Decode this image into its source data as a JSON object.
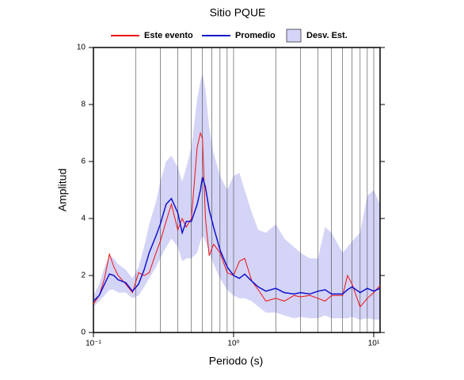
{
  "chart_data": {
    "type": "line",
    "title": "Sitio PQUE",
    "xlabel": "Periodo (s)",
    "ylabel": "Amplitud",
    "xscale": "log",
    "xlim": [
      0.1,
      11.1
    ],
    "ylim": [
      0,
      10
    ],
    "xticks": [
      {
        "value": 0.1,
        "label": "10⁻¹"
      },
      {
        "value": 1,
        "label": "10⁰"
      },
      {
        "value": 10,
        "label": "10¹"
      }
    ],
    "xgrid": [
      0.2,
      0.3,
      0.4,
      0.5,
      0.6,
      0.7,
      0.8,
      0.9,
      2,
      3,
      4,
      5,
      6,
      7,
      8,
      9
    ],
    "yticks": [
      0,
      2,
      4,
      6,
      8,
      10
    ],
    "legend": "top",
    "x": [
      0.1,
      0.11,
      0.12,
      0.13,
      0.14,
      0.15,
      0.17,
      0.19,
      0.21,
      0.23,
      0.25,
      0.28,
      0.3,
      0.33,
      0.36,
      0.4,
      0.43,
      0.46,
      0.5,
      0.55,
      0.58,
      0.6,
      0.63,
      0.67,
      0.72,
      0.8,
      0.9,
      1.0,
      1.1,
      1.2,
      1.35,
      1.5,
      1.7,
      2.0,
      2.3,
      2.7,
      3.0,
      3.5,
      4,
      4.5,
      5,
      6,
      6.5,
      7,
      8,
      9,
      10,
      11.1
    ],
    "band": {
      "name": "Desv. Est.",
      "color": "#d4d4f7",
      "low": [
        0.9,
        1.1,
        1.3,
        1.5,
        1.5,
        1.4,
        1.4,
        1.2,
        1.3,
        1.6,
        1.9,
        2.3,
        2.6,
        3.0,
        3.3,
        3.0,
        2.5,
        2.6,
        2.6,
        2.8,
        3.2,
        3.4,
        3.2,
        2.8,
        2.4,
        1.9,
        1.5,
        1.3,
        1.2,
        1.2,
        1.1,
        0.9,
        0.7,
        0.7,
        0.6,
        0.5,
        0.55,
        0.5,
        0.5,
        0.6,
        0.5,
        0.5,
        0.5,
        0.55,
        0.45,
        0.5,
        0.45,
        0.45
      ],
      "high": [
        1.3,
        1.7,
        2.3,
        2.7,
        2.6,
        2.4,
        2.2,
        1.9,
        2.3,
        3.0,
        3.8,
        4.6,
        5.3,
        6.0,
        6.2,
        5.8,
        5.3,
        5.8,
        6.5,
        8.2,
        8.8,
        9.1,
        8.5,
        7.2,
        6.3,
        5.5,
        5.0,
        5.5,
        5.6,
        5.0,
        4.2,
        3.6,
        3.5,
        3.8,
        3.3,
        3.0,
        2.8,
        2.6,
        2.6,
        3.7,
        3.5,
        2.8,
        3.0,
        3.2,
        3.5,
        4.8,
        5.0,
        4.5
      ]
    },
    "series": [
      {
        "name": "Este evento",
        "color": "#ee1111",
        "values": [
          1.0,
          1.3,
          1.9,
          2.75,
          2.3,
          2.0,
          1.7,
          1.4,
          2.1,
          2.0,
          2.1,
          2.8,
          3.2,
          3.9,
          4.5,
          3.6,
          4.0,
          3.7,
          4.0,
          6.5,
          7.0,
          6.8,
          4.0,
          2.7,
          3.1,
          2.8,
          2.1,
          2.0,
          2.5,
          2.6,
          1.8,
          1.5,
          1.1,
          1.2,
          1.1,
          1.3,
          1.25,
          1.3,
          1.2,
          1.1,
          1.3,
          1.3,
          2.0,
          1.7,
          0.9,
          1.2,
          1.4,
          1.65
        ]
      },
      {
        "name": "Promedio",
        "color": "#1111cc",
        "values": [
          1.1,
          1.3,
          1.7,
          2.05,
          2.0,
          1.85,
          1.75,
          1.45,
          1.7,
          2.2,
          2.8,
          3.4,
          3.8,
          4.5,
          4.7,
          4.2,
          3.5,
          3.9,
          3.9,
          4.5,
          5.0,
          5.45,
          5.1,
          4.3,
          3.7,
          2.9,
          2.3,
          2.0,
          1.9,
          2.05,
          1.8,
          1.6,
          1.45,
          1.55,
          1.4,
          1.35,
          1.4,
          1.35,
          1.45,
          1.5,
          1.35,
          1.35,
          1.5,
          1.6,
          1.4,
          1.55,
          1.45,
          1.55
        ]
      }
    ]
  }
}
